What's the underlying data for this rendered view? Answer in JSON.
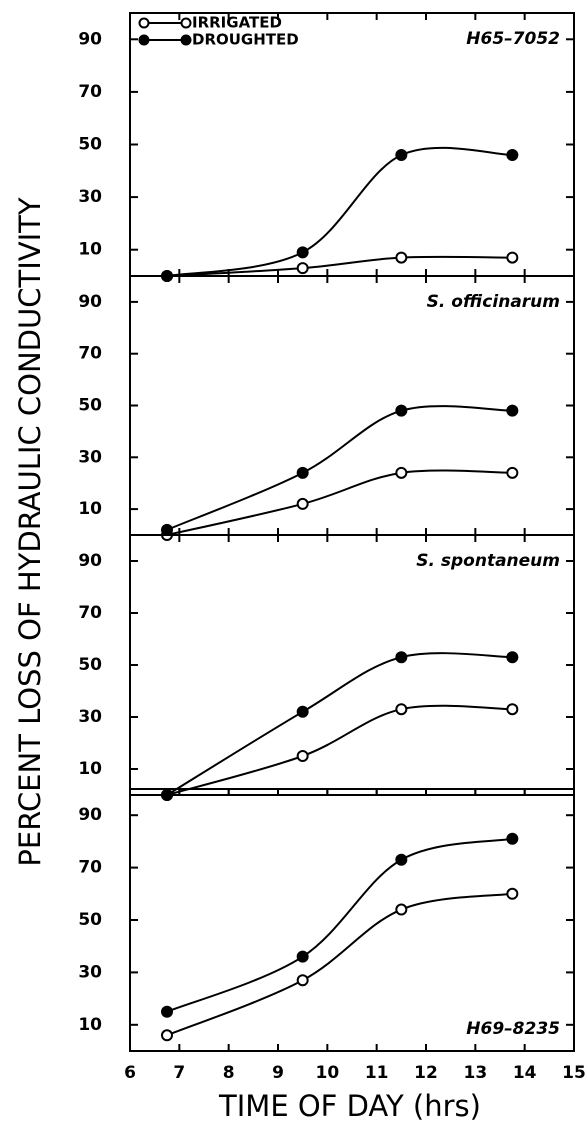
{
  "chart_data": [
    {
      "type": "line",
      "title": "H65–7052",
      "ylabel": "PERCENT LOSS OF HYDRAULIC CONDUCTIVITY",
      "x": [
        6.75,
        9.5,
        11.5,
        13.75
      ],
      "series": [
        {
          "name": "IRRIGATED",
          "color": "#000000",
          "marker": "open",
          "values": [
            0,
            3,
            7,
            7
          ]
        },
        {
          "name": "DROUGHTED",
          "color": "#000000",
          "marker": "filled",
          "values": [
            0,
            9,
            46,
            46
          ]
        }
      ],
      "ylim": [
        0,
        100
      ],
      "yticks": [
        10,
        30,
        50,
        70,
        90
      ],
      "title_position": "top"
    },
    {
      "type": "line",
      "title": "S. officinarum",
      "x": [
        6.75,
        9.5,
        11.5,
        13.75
      ],
      "series": [
        {
          "color": "#000000",
          "marker": "open",
          "values": [
            0,
            12,
            24,
            24
          ]
        },
        {
          "color": "#000000",
          "marker": "filled",
          "values": [
            2,
            24,
            48,
            48
          ]
        }
      ],
      "ylim": [
        0,
        100
      ],
      "yticks": [
        10,
        30,
        50,
        70,
        90
      ],
      "title_position": "top"
    },
    {
      "type": "line",
      "title": "S. spontaneum",
      "x": [
        6.75,
        9.5,
        11.5,
        13.75
      ],
      "series": [
        {
          "color": "#000000",
          "marker": "open",
          "values": [
            0,
            15,
            33,
            33
          ]
        },
        {
          "color": "#000000",
          "marker": "filled",
          "values": [
            0,
            32,
            53,
            53
          ]
        }
      ],
      "ylim": [
        0,
        100
      ],
      "yticks": [
        10,
        30,
        50,
        70,
        90
      ],
      "title_position": "top"
    },
    {
      "type": "line",
      "title": "H69–8235",
      "xlabel": "TIME OF DAY (hrs)",
      "x": [
        6.75,
        9.5,
        11.5,
        13.75
      ],
      "series": [
        {
          "color": "#000000",
          "marker": "open",
          "values": [
            6,
            27,
            54,
            60
          ]
        },
        {
          "color": "#000000",
          "marker": "filled",
          "values": [
            15,
            36,
            73,
            81
          ]
        }
      ],
      "ylim": [
        0,
        100
      ],
      "yticks": [
        10,
        30,
        50,
        70,
        90
      ],
      "title_position": "bottom",
      "xlim": [
        6,
        15
      ],
      "xticks": [
        6,
        7,
        8,
        9,
        10,
        11,
        12,
        13,
        14,
        15
      ]
    }
  ]
}
